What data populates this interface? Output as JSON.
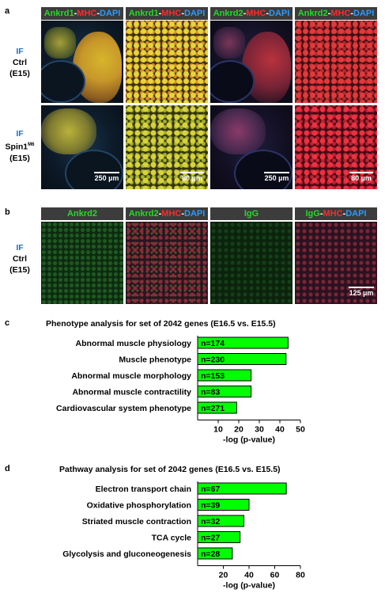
{
  "panel_a": {
    "letter": "a",
    "headers": [
      [
        {
          "t": "Ankrd1",
          "c": "g"
        },
        {
          "t": "-",
          "c": "w"
        },
        {
          "t": "MHC",
          "c": "r"
        },
        {
          "t": "-",
          "c": "w"
        },
        {
          "t": "DAPI",
          "c": "b"
        }
      ],
      [
        {
          "t": "Ankrd1",
          "c": "g"
        },
        {
          "t": "-",
          "c": "w"
        },
        {
          "t": "MHC",
          "c": "r"
        },
        {
          "t": "-",
          "c": "w"
        },
        {
          "t": "DAPI",
          "c": "b"
        }
      ],
      [
        {
          "t": "Ankrd2",
          "c": "g"
        },
        {
          "t": "-",
          "c": "w"
        },
        {
          "t": "MHC",
          "c": "r"
        },
        {
          "t": "-",
          "c": "w"
        },
        {
          "t": "DAPI",
          "c": "b"
        }
      ],
      [
        {
          "t": "Ankrd2",
          "c": "g"
        },
        {
          "t": "-",
          "c": "w"
        },
        {
          "t": "MHC",
          "c": "r"
        },
        {
          "t": "-",
          "c": "w"
        },
        {
          "t": "DAPI",
          "c": "b"
        }
      ]
    ],
    "row1_label": {
      "if": "IF",
      "cond": "Ctrl",
      "stage": "(E15)"
    },
    "row2_label": {
      "if": "IF",
      "cond": "Spin1",
      "sup": "M6",
      "stage": "(E15)"
    },
    "scalebars": [
      "250 µm",
      "80 µm",
      "250 µm",
      "80 µm"
    ]
  },
  "panel_b": {
    "letter": "b",
    "headers": [
      [
        {
          "t": "Ankrd2",
          "c": "g"
        }
      ],
      [
        {
          "t": "Ankrd2",
          "c": "g"
        },
        {
          "t": "-",
          "c": "w"
        },
        {
          "t": "MHC",
          "c": "r"
        },
        {
          "t": "-",
          "c": "w"
        },
        {
          "t": "DAPI",
          "c": "b"
        }
      ],
      [
        {
          "t": "IgG",
          "c": "g"
        }
      ],
      [
        {
          "t": "IgG",
          "c": "g"
        },
        {
          "t": "-",
          "c": "w"
        },
        {
          "t": "MHC",
          "c": "r"
        },
        {
          "t": "-",
          "c": "w"
        },
        {
          "t": "DAPI",
          "c": "b"
        }
      ]
    ],
    "row_label": {
      "if": "IF",
      "cond": "Ctrl",
      "stage": "(E15)"
    },
    "scalebar": "125 µm"
  },
  "panel_c": {
    "letter": "c",
    "chart_data": {
      "type": "bar",
      "orientation": "horizontal",
      "title": "Phenotype analysis for set of 2042 genes (E16.5 vs. E15.5)",
      "categories": [
        "Abnormal muscle physiology",
        "Muscle phenotype",
        "Abnormal muscle morphology",
        "Abnormal muscle contractility",
        "Cardiovascular system phenotype"
      ],
      "values": [
        44,
        43,
        26,
        26,
        19
      ],
      "bar_labels": [
        "n=174",
        "n=230",
        "n=153",
        "n=83",
        "n=271"
      ],
      "xlabel": "-log (p-value)",
      "xticks": [
        10,
        20,
        30,
        40,
        50
      ],
      "xlim": [
        0,
        50
      ],
      "bar_color": "#00ff00"
    }
  },
  "panel_d": {
    "letter": "d",
    "chart_data": {
      "type": "bar",
      "orientation": "horizontal",
      "title": "Pathway analysis for set of 2042 genes (E16.5 vs. E15.5)",
      "categories": [
        "Electron transport chain",
        "Oxidative phosphorylation",
        "Striated muscle contraction",
        "TCA cycle",
        "Glycolysis and gluconeogenesis"
      ],
      "values": [
        69,
        40,
        36,
        33,
        27
      ],
      "bar_labels": [
        "n=67",
        "n=39",
        "n=32",
        "n=27",
        "n=28"
      ],
      "xlabel": "-log (p-value)",
      "xticks": [
        20,
        40,
        60,
        80
      ],
      "xlim": [
        0,
        80
      ],
      "bar_color": "#00ff00"
    }
  }
}
